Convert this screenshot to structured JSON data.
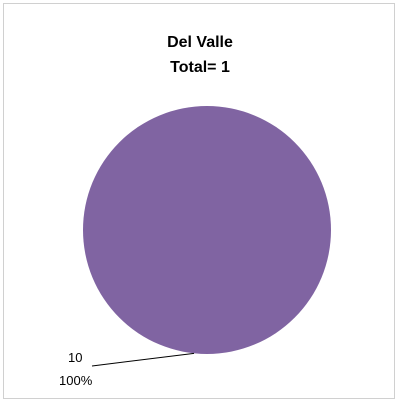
{
  "chart_data": {
    "type": "pie",
    "title": "Del Valle",
    "subtitle": "Total= 1",
    "slices": [
      {
        "label": "10",
        "value": 1,
        "percent": "100%",
        "color": "#8064a2"
      }
    ]
  }
}
